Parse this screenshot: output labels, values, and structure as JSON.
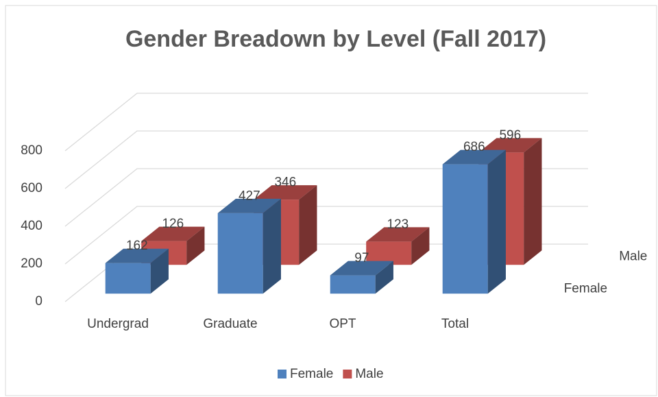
{
  "chart_data": {
    "type": "bar3d",
    "title": "Gender Breadown by Level (Fall 2017)",
    "categories": [
      "Undergrad",
      "Graduate",
      "OPT",
      "Total"
    ],
    "series": [
      {
        "name": "Female",
        "color": "#4f81bd",
        "values": [
          162,
          427,
          97,
          686
        ]
      },
      {
        "name": "Male",
        "color": "#c0504d",
        "values": [
          126,
          346,
          123,
          596
        ]
      }
    ],
    "ylim": [
      0,
      800
    ],
    "yticks": [
      0,
      200,
      400,
      600,
      800
    ],
    "grid": true,
    "legend": "bottom"
  }
}
